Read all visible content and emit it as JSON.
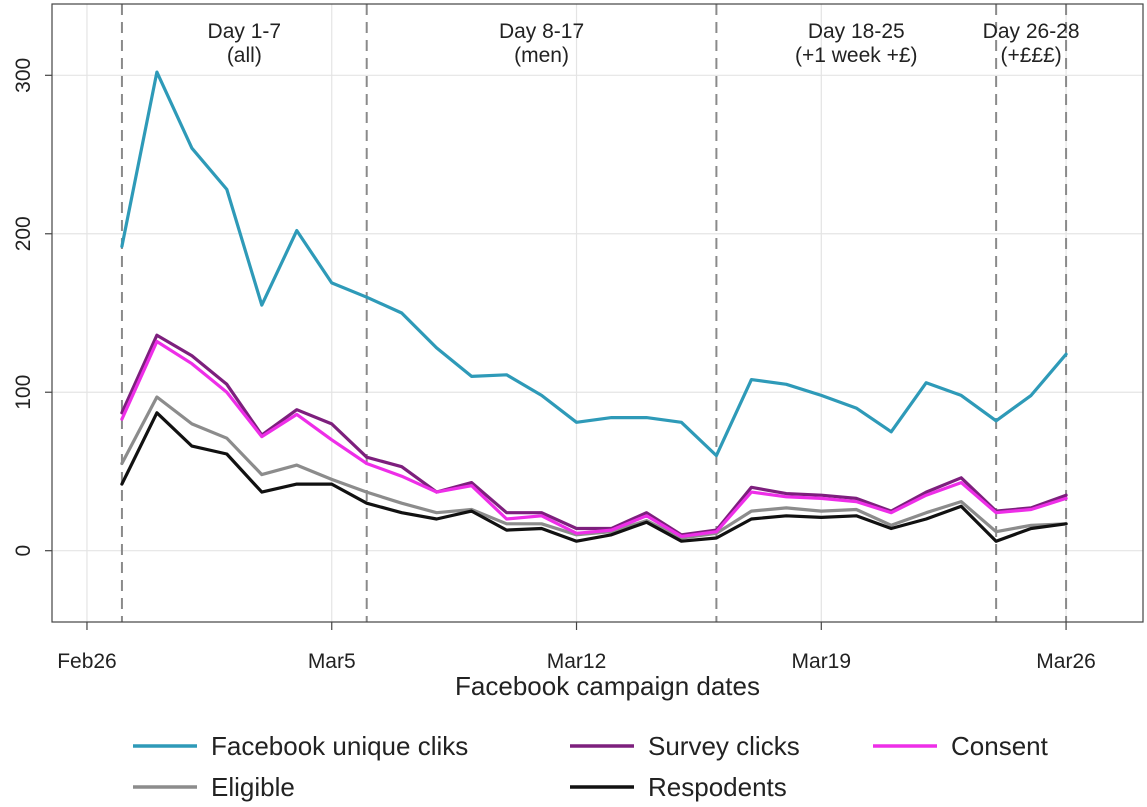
{
  "chart_data": {
    "type": "line",
    "title": "",
    "xlabel": "Facebook campaign dates",
    "ylabel": "",
    "ylim": [
      -45,
      345
    ],
    "xlim_day": [
      -1,
      30.2
    ],
    "grid": true,
    "legend_placement": "bottom",
    "x_ticks": [
      {
        "label": "Feb26",
        "day": 0
      },
      {
        "label": "Mar5",
        "day": 7
      },
      {
        "label": "Mar12",
        "day": 14
      },
      {
        "label": "Mar19",
        "day": 21
      },
      {
        "label": "Mar26",
        "day": 28
      }
    ],
    "y_ticks": [
      0,
      100,
      200,
      300
    ],
    "phases": [
      {
        "line1": "Day 1-7",
        "line2": "(all)",
        "start_day": 1,
        "end_day": 8
      },
      {
        "line1": "Day 8-17",
        "line2": "(men)",
        "start_day": 8,
        "end_day": 18
      },
      {
        "line1": "Day 18-25",
        "line2": "(+1 week +£)",
        "start_day": 18,
        "end_day": 26
      },
      {
        "line1": "Day 26-28",
        "line2": "(+£££)",
        "start_day": 26,
        "end_day": 28
      }
    ],
    "x_days": [
      1,
      2,
      3,
      4,
      5,
      6,
      7,
      8,
      9,
      10,
      11,
      12,
      13,
      14,
      15,
      16,
      17,
      18,
      19,
      20,
      21,
      22,
      23,
      24,
      25,
      26,
      27,
      28
    ],
    "series": [
      {
        "name": "Eligible",
        "color": "#8c8c8c",
        "values": [
          55,
          97,
          80,
          71,
          48,
          54,
          45,
          37,
          30,
          24,
          26,
          17,
          17,
          10,
          12,
          19,
          8,
          11,
          25,
          27,
          25,
          26,
          16,
          24,
          31,
          12,
          16,
          17
        ]
      },
      {
        "name": "Respodents",
        "color": "#111111",
        "values": [
          42,
          87,
          66,
          61,
          37,
          42,
          42,
          30,
          24,
          20,
          25,
          13,
          14,
          6,
          10,
          18,
          6,
          8,
          20,
          22,
          21,
          22,
          14,
          20,
          28,
          6,
          14,
          17
        ]
      },
      {
        "name": "Survey clicks",
        "color": "#7d1f7d",
        "values": [
          87,
          136,
          123,
          105,
          73,
          89,
          80,
          59,
          53,
          37,
          43,
          24,
          24,
          14,
          14,
          24,
          10,
          13,
          40,
          36,
          35,
          33,
          25,
          37,
          46,
          25,
          27,
          35
        ]
      },
      {
        "name": "Consent",
        "color": "#ee2ee8",
        "values": [
          83,
          132,
          118,
          100,
          72,
          86,
          70,
          55,
          47,
          37,
          41,
          20,
          22,
          11,
          13,
          22,
          9,
          12,
          37,
          34,
          33,
          31,
          24,
          35,
          43,
          24,
          26,
          33
        ]
      },
      {
        "name": "Facebook unique cliks",
        "color": "#2e9ab8",
        "values": [
          192,
          302,
          254,
          228,
          155,
          202,
          169,
          160,
          150,
          128,
          110,
          111,
          98,
          81,
          84,
          84,
          81,
          60,
          108,
          105,
          98,
          90,
          75,
          106,
          98,
          82,
          98,
          124
        ]
      }
    ],
    "legend": [
      {
        "name": "Facebook unique cliks",
        "color": "#2e9ab8"
      },
      {
        "name": "Survey clicks",
        "color": "#7d1f7d"
      },
      {
        "name": "Consent",
        "color": "#ee2ee8"
      },
      {
        "name": "Eligible",
        "color": "#8c8c8c"
      },
      {
        "name": "Respodents",
        "color": "#111111"
      }
    ]
  }
}
